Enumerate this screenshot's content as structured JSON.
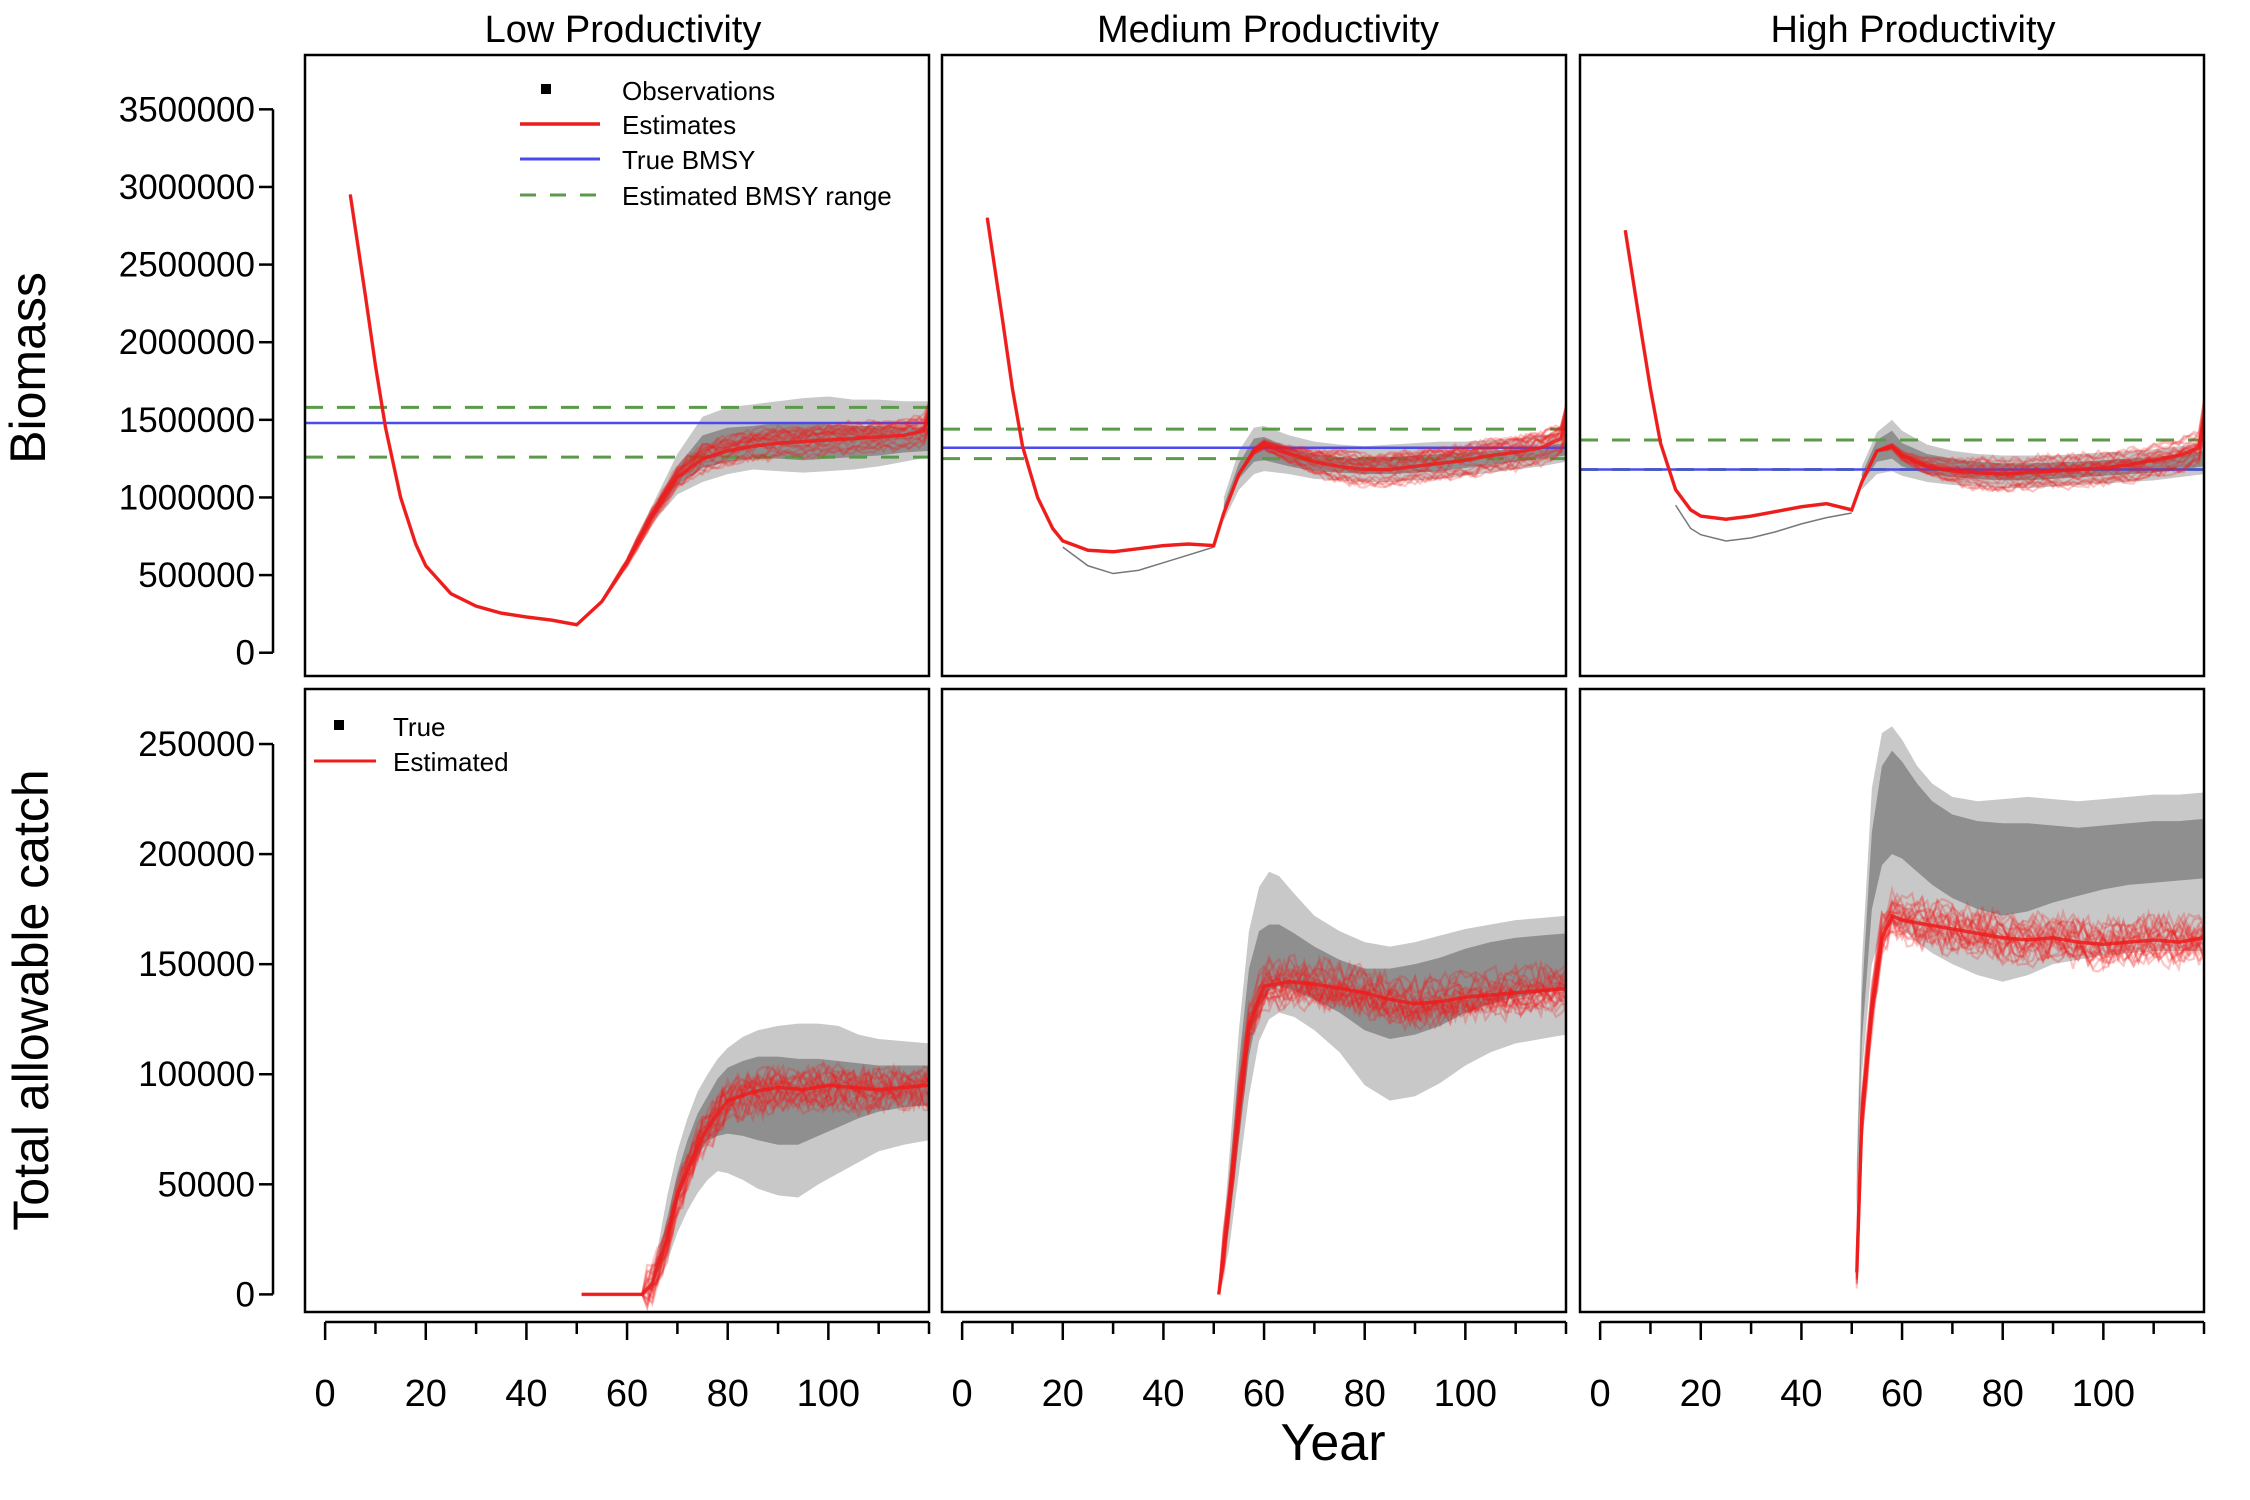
{
  "figure": {
    "xlabel": "Year",
    "ylabel_top": "Biomass",
    "ylabel_bottom": "Total allowable catch",
    "panel_titles": [
      "Low Productivity",
      "Medium Productivity",
      "High Productivity"
    ],
    "legend_top": {
      "observations": "Observations",
      "estimates": "Estimates",
      "true_bmsy": "True BMSY",
      "estimated_range": "Estimated BMSY range"
    },
    "legend_bottom": {
      "true": "True",
      "estimated": "Estimated"
    },
    "colors": {
      "estimate": "#ee1c1c",
      "true_bmsy": "#4a4aee",
      "range": "#5a9a4a",
      "band_outer": "#c8c8c8",
      "band_inner": "#8f8f8f",
      "axis": "#000000"
    }
  },
  "chart_data": [
    {
      "type": "line",
      "panel": "top-left",
      "title": "Low Productivity",
      "ylabel": "Biomass",
      "xlim": [
        -4,
        120
      ],
      "ylim": [
        -150000,
        3850000
      ],
      "xticks": [
        0,
        20,
        40,
        60,
        80,
        100
      ],
      "yticks": [
        0,
        500000,
        1000000,
        1500000,
        2000000,
        2500000,
        3000000,
        3500000
      ],
      "ytick_labels": [
        "0",
        "500000",
        "1000000",
        "1500000",
        "2000000",
        "2500000",
        "3000000",
        "3500000"
      ],
      "true_bmsy": 1480000,
      "estimated_bmsy_range": [
        1260000,
        1580000
      ],
      "x": [
        5,
        8,
        10,
        12,
        15,
        18,
        20,
        25,
        30,
        35,
        40,
        45,
        50,
        55,
        60,
        65,
        70,
        75,
        80,
        85,
        90,
        95,
        100,
        105,
        110,
        115,
        119,
        120
      ],
      "estimate": [
        2950000,
        2300000,
        1850000,
        1450000,
        1000000,
        700000,
        560000,
        380000,
        300000,
        255000,
        230000,
        210000,
        180000,
        330000,
        580000,
        880000,
        1130000,
        1250000,
        1300000,
        1330000,
        1350000,
        1360000,
        1370000,
        1380000,
        1390000,
        1400000,
        1430000,
        1520000
      ],
      "band_x": [
        60,
        65,
        70,
        75,
        80,
        85,
        90,
        95,
        100,
        105,
        110,
        115,
        120
      ],
      "band_outer_upper": [
        620000,
        950000,
        1280000,
        1520000,
        1580000,
        1600000,
        1620000,
        1640000,
        1650000,
        1630000,
        1630000,
        1620000,
        1620000
      ],
      "band_outer_lower": [
        560000,
        830000,
        1020000,
        1100000,
        1150000,
        1180000,
        1170000,
        1160000,
        1170000,
        1180000,
        1200000,
        1230000,
        1260000
      ],
      "band_inner_upper": [
        600000,
        910000,
        1200000,
        1400000,
        1450000,
        1460000,
        1480000,
        1480000,
        1470000,
        1460000,
        1460000,
        1450000,
        1450000
      ],
      "band_inner_lower": [
        575000,
        860000,
        1080000,
        1190000,
        1230000,
        1250000,
        1250000,
        1240000,
        1250000,
        1260000,
        1270000,
        1290000,
        1300000
      ]
    },
    {
      "type": "line",
      "panel": "top-middle",
      "title": "Medium Productivity",
      "xlim": [
        -4,
        120
      ],
      "ylim": [
        -150000,
        3850000
      ],
      "xticks": [
        0,
        20,
        40,
        60,
        80,
        100
      ],
      "true_bmsy": 1320000,
      "estimated_bmsy_range": [
        1250000,
        1440000
      ],
      "x": [
        5,
        8,
        10,
        12,
        15,
        18,
        20,
        25,
        30,
        35,
        40,
        45,
        50,
        52,
        55,
        58,
        60,
        65,
        70,
        75,
        80,
        85,
        90,
        95,
        100,
        105,
        110,
        115,
        119,
        120
      ],
      "estimate": [
        2800000,
        2150000,
        1700000,
        1330000,
        1000000,
        800000,
        720000,
        660000,
        650000,
        670000,
        690000,
        700000,
        690000,
        900000,
        1150000,
        1300000,
        1340000,
        1280000,
        1230000,
        1200000,
        1180000,
        1180000,
        1200000,
        1220000,
        1240000,
        1270000,
        1290000,
        1320000,
        1380000,
        1500000
      ],
      "true_dip": [
        [
          20,
          680000
        ],
        [
          25,
          560000
        ],
        [
          30,
          510000
        ],
        [
          35,
          530000
        ],
        [
          40,
          580000
        ],
        [
          45,
          630000
        ],
        [
          50,
          680000
        ]
      ],
      "band_x": [
        52,
        55,
        58,
        60,
        65,
        70,
        75,
        80,
        85,
        90,
        95,
        100,
        105,
        110,
        115,
        120
      ],
      "band_outer_upper": [
        1000000,
        1300000,
        1450000,
        1460000,
        1400000,
        1360000,
        1340000,
        1330000,
        1340000,
        1350000,
        1360000,
        1360000,
        1370000,
        1380000,
        1400000,
        1420000
      ],
      "band_outer_lower": [
        850000,
        1050000,
        1150000,
        1170000,
        1150000,
        1120000,
        1110000,
        1100000,
        1100000,
        1110000,
        1120000,
        1140000,
        1160000,
        1180000,
        1200000,
        1230000
      ],
      "band_inner_upper": [
        950000,
        1220000,
        1380000,
        1390000,
        1320000,
        1280000,
        1260000,
        1250000,
        1260000,
        1270000,
        1280000,
        1290000,
        1300000,
        1310000,
        1330000,
        1350000
      ],
      "band_inner_lower": [
        900000,
        1120000,
        1230000,
        1240000,
        1200000,
        1170000,
        1160000,
        1150000,
        1150000,
        1160000,
        1170000,
        1190000,
        1210000,
        1230000,
        1250000,
        1270000
      ]
    },
    {
      "type": "line",
      "panel": "top-right",
      "title": "High Productivity",
      "xlim": [
        -4,
        120
      ],
      "ylim": [
        -150000,
        3850000
      ],
      "xticks": [
        0,
        20,
        40,
        60,
        80,
        100
      ],
      "true_bmsy": 1180000,
      "estimated_bmsy_range": [
        1180000,
        1370000
      ],
      "x": [
        5,
        8,
        10,
        12,
        15,
        18,
        20,
        25,
        30,
        35,
        40,
        45,
        50,
        52,
        55,
        58,
        60,
        65,
        70,
        75,
        80,
        85,
        90,
        95,
        100,
        105,
        110,
        115,
        119,
        120
      ],
      "estimate": [
        2720000,
        2100000,
        1700000,
        1350000,
        1050000,
        920000,
        880000,
        860000,
        880000,
        910000,
        940000,
        960000,
        920000,
        1100000,
        1300000,
        1330000,
        1270000,
        1200000,
        1170000,
        1160000,
        1150000,
        1160000,
        1170000,
        1180000,
        1190000,
        1210000,
        1240000,
        1270000,
        1320000,
        1520000
      ],
      "true_dip": [
        [
          15,
          950000
        ],
        [
          18,
          800000
        ],
        [
          20,
          760000
        ],
        [
          25,
          720000
        ],
        [
          30,
          740000
        ],
        [
          35,
          780000
        ],
        [
          40,
          830000
        ],
        [
          45,
          870000
        ],
        [
          50,
          900000
        ]
      ],
      "band_x": [
        52,
        55,
        58,
        60,
        65,
        70,
        75,
        80,
        85,
        90,
        95,
        100,
        105,
        110,
        115,
        120
      ],
      "band_outer_upper": [
        1200000,
        1420000,
        1500000,
        1430000,
        1340000,
        1300000,
        1280000,
        1270000,
        1270000,
        1270000,
        1280000,
        1290000,
        1300000,
        1310000,
        1330000,
        1350000
      ],
      "band_outer_lower": [
        1050000,
        1150000,
        1170000,
        1140000,
        1100000,
        1080000,
        1070000,
        1060000,
        1060000,
        1070000,
        1080000,
        1090000,
        1100000,
        1110000,
        1130000,
        1150000
      ],
      "band_inner_upper": [
        1150000,
        1370000,
        1430000,
        1350000,
        1280000,
        1250000,
        1230000,
        1220000,
        1220000,
        1225000,
        1230000,
        1240000,
        1250000,
        1260000,
        1280000,
        1300000
      ],
      "band_inner_lower": [
        1090000,
        1230000,
        1250000,
        1200000,
        1150000,
        1130000,
        1120000,
        1110000,
        1110000,
        1120000,
        1130000,
        1140000,
        1150000,
        1160000,
        1180000,
        1200000
      ]
    },
    {
      "type": "line",
      "panel": "bottom-left",
      "ylabel": "Total allowable catch",
      "xlabel": "Year",
      "xlim": [
        -4,
        120
      ],
      "ylim": [
        -8000,
        275000
      ],
      "xticks": [
        0,
        20,
        40,
        60,
        80,
        100
      ],
      "yticks": [
        0,
        50000,
        100000,
        150000,
        200000,
        250000
      ],
      "ytick_labels": [
        "0",
        "50000",
        "100000",
        "150000",
        "200000",
        "250000"
      ],
      "x": [
        51,
        55,
        60,
        63,
        65,
        68,
        70,
        73,
        75,
        78,
        80,
        85,
        90,
        95,
        100,
        105,
        110,
        115,
        120
      ],
      "estimate": [
        0,
        0,
        0,
        0,
        5000,
        25000,
        45000,
        62000,
        72000,
        82000,
        88000,
        92000,
        94000,
        93000,
        95000,
        94000,
        93000,
        94000,
        95000
      ],
      "band_x": [
        64,
        66,
        68,
        70,
        72,
        74,
        76,
        78,
        80,
        83,
        86,
        90,
        94,
        98,
        102,
        106,
        110,
        115,
        120
      ],
      "band_outer_upper": [
        0,
        20000,
        45000,
        65000,
        80000,
        92000,
        100000,
        107000,
        112000,
        117000,
        120000,
        122000,
        123000,
        123000,
        122000,
        118000,
        116000,
        115000,
        114000
      ],
      "band_outer_lower": [
        0,
        5000,
        15000,
        28000,
        38000,
        46000,
        52000,
        56000,
        55000,
        52000,
        48000,
        45000,
        44000,
        50000,
        55000,
        60000,
        65000,
        68000,
        70000
      ],
      "band_inner_upper": [
        0,
        15000,
        35000,
        55000,
        70000,
        82000,
        90000,
        98000,
        103000,
        106000,
        108000,
        108000,
        107000,
        107000,
        106000,
        105000,
        104000,
        104000,
        104000
      ],
      "band_inner_lower": [
        0,
        10000,
        25000,
        42000,
        55000,
        63000,
        70000,
        72000,
        73000,
        72000,
        70000,
        68000,
        68000,
        72000,
        76000,
        80000,
        83000,
        85000,
        86000
      ]
    },
    {
      "type": "line",
      "panel": "bottom-middle",
      "xlim": [
        -4,
        120
      ],
      "ylim": [
        -8000,
        275000
      ],
      "xticks": [
        0,
        20,
        40,
        60,
        80,
        100
      ],
      "x": [
        51,
        53,
        55,
        57,
        60,
        65,
        70,
        75,
        80,
        85,
        90,
        95,
        100,
        105,
        110,
        115,
        120
      ],
      "estimate": [
        0,
        40000,
        85000,
        122000,
        140000,
        142000,
        141000,
        139000,
        137000,
        134000,
        132000,
        133000,
        135000,
        136000,
        137000,
        138000,
        139000
      ],
      "band_x": [
        51,
        53,
        55,
        57,
        59,
        61,
        63,
        66,
        70,
        75,
        80,
        85,
        90,
        95,
        100,
        105,
        110,
        115,
        120
      ],
      "band_outer_upper": [
        0,
        60000,
        120000,
        165000,
        185000,
        192000,
        190000,
        182000,
        172000,
        165000,
        160000,
        158000,
        160000,
        163000,
        166000,
        168000,
        170000,
        171000,
        172000
      ],
      "band_outer_lower": [
        0,
        20000,
        55000,
        90000,
        115000,
        125000,
        128000,
        126000,
        120000,
        110000,
        95000,
        88000,
        90000,
        96000,
        104000,
        110000,
        114000,
        116000,
        118000
      ],
      "band_inner_upper": [
        0,
        50000,
        105000,
        148000,
        165000,
        168000,
        168000,
        164000,
        158000,
        152000,
        148000,
        148000,
        150000,
        153000,
        157000,
        160000,
        162000,
        163000,
        164000
      ],
      "band_inner_lower": [
        0,
        30000,
        70000,
        108000,
        130000,
        138000,
        140000,
        138000,
        134000,
        128000,
        120000,
        116000,
        118000,
        122000,
        128000,
        132000,
        135000,
        137000,
        138000
      ]
    },
    {
      "type": "line",
      "panel": "bottom-right",
      "xlim": [
        -4,
        120
      ],
      "ylim": [
        -8000,
        275000
      ],
      "xticks": [
        0,
        20,
        40,
        60,
        80,
        100
      ],
      "x": [
        51,
        52,
        54,
        56,
        58,
        60,
        65,
        70,
        75,
        80,
        85,
        90,
        95,
        100,
        105,
        110,
        115,
        120
      ],
      "estimate": [
        10000,
        80000,
        130000,
        162000,
        172000,
        170000,
        168000,
        166000,
        164000,
        162000,
        161000,
        162000,
        160000,
        159000,
        160000,
        161000,
        160000,
        162000
      ],
      "band_x": [
        51,
        52,
        54,
        56,
        58,
        60,
        63,
        66,
        70,
        75,
        80,
        85,
        90,
        95,
        100,
        105,
        110,
        115,
        120
      ],
      "band_outer_upper": [
        60000,
        150000,
        230000,
        255000,
        258000,
        252000,
        240000,
        232000,
        226000,
        224000,
        225000,
        226000,
        225000,
        224000,
        225000,
        226000,
        227000,
        227000,
        228000
      ],
      "band_outer_lower": [
        30000,
        100000,
        150000,
        165000,
        168000,
        166000,
        160000,
        155000,
        150000,
        145000,
        142000,
        145000,
        150000,
        152000,
        154000,
        155000,
        156000,
        156000,
        156000
      ],
      "band_inner_upper": [
        50000,
        135000,
        210000,
        240000,
        247000,
        242000,
        232000,
        224000,
        218000,
        215000,
        214000,
        214000,
        213000,
        212000,
        213000,
        214000,
        215000,
        215000,
        216000
      ],
      "band_inner_lower": [
        40000,
        115000,
        175000,
        195000,
        200000,
        198000,
        192000,
        186000,
        180000,
        175000,
        172000,
        174000,
        178000,
        181000,
        184000,
        186000,
        187000,
        188000,
        189000
      ]
    }
  ]
}
